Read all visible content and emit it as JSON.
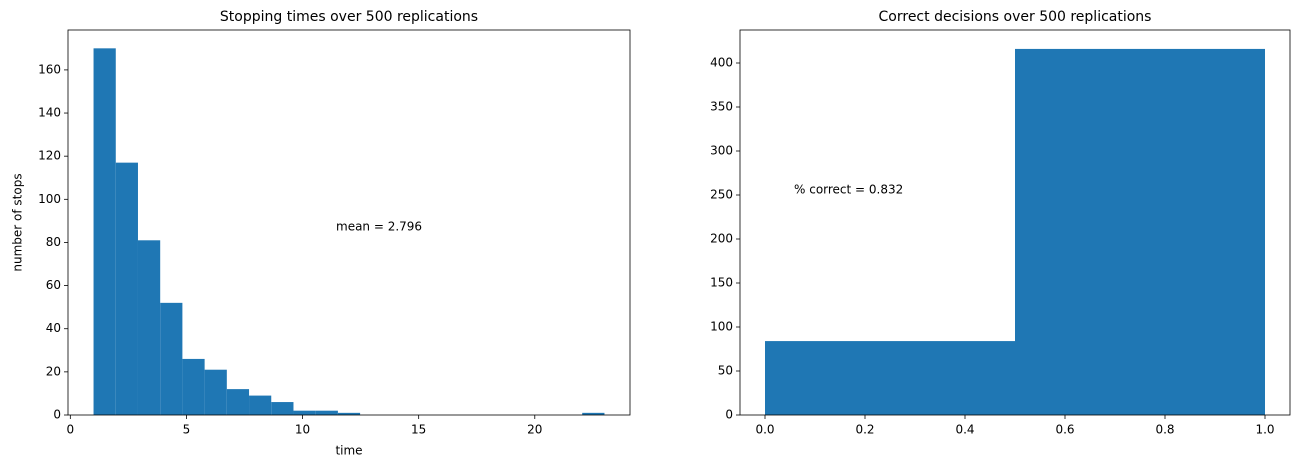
{
  "chart_data": [
    {
      "type": "histogram",
      "title": "Stopping times over 500 replications",
      "x_label": "time",
      "y_label": "number of stops",
      "annotation": "mean = 2.796",
      "color": "#1f77b4",
      "bins": [
        1,
        1.957,
        2.913,
        3.87,
        4.826,
        5.783,
        6.739,
        7.696,
        8.652,
        9.609,
        10.565,
        11.522,
        12.478,
        13.435,
        14.391,
        15.348,
        16.304,
        17.261,
        18.217,
        19.174,
        20.13,
        21.087,
        22.043,
        23
      ],
      "values": [
        170,
        117,
        81,
        52,
        26,
        21,
        12,
        9,
        6,
        2,
        2,
        1,
        0,
        0,
        0,
        0,
        0,
        0,
        0,
        0,
        0,
        0,
        1
      ],
      "xlim": [
        -0.1,
        24.1
      ],
      "ylim": [
        0,
        178.5
      ],
      "xticks": [
        0,
        5,
        10,
        15,
        20
      ],
      "yticks": [
        0,
        20,
        40,
        60,
        80,
        100,
        120,
        140,
        160
      ]
    },
    {
      "type": "histogram",
      "title": "Correct decisions over 500 replications",
      "annotation": "% correct = 0.832",
      "color": "#1f77b4",
      "bins": [
        0,
        0.5,
        1
      ],
      "values": [
        84,
        416
      ],
      "xlim": [
        -0.05,
        1.05
      ],
      "ylim": [
        0,
        437.5
      ],
      "xticks": [
        {
          "value": 0,
          "label": "0.0"
        },
        0.2,
        0.4,
        0.6,
        0.8,
        {
          "value": 1,
          "label": "1.0"
        }
      ],
      "yticks": [
        0,
        50,
        100,
        150,
        200,
        250,
        300,
        350,
        400
      ]
    }
  ]
}
